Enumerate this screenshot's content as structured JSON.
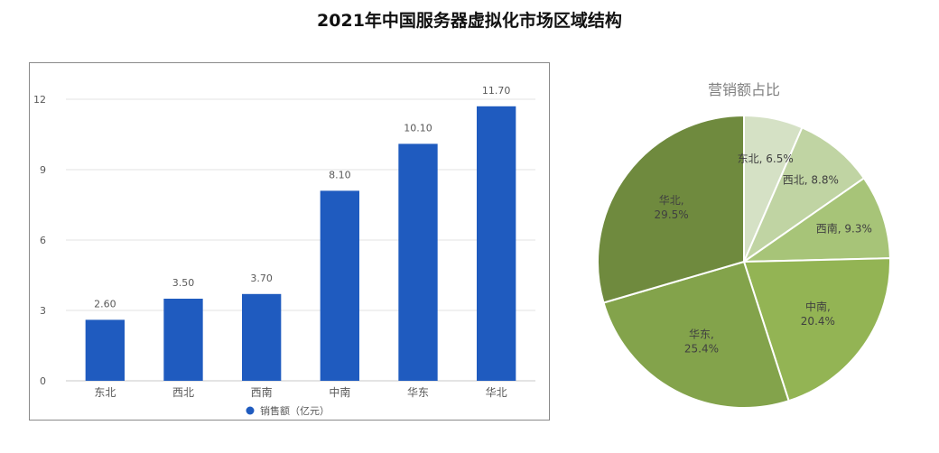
{
  "page_title": "2021年中国服务器虚拟化市场区域结构",
  "chart_data": [
    {
      "type": "bar",
      "categories": [
        "东北",
        "西北",
        "西南",
        "中南",
        "华东",
        "华北"
      ],
      "series": [
        {
          "name": "销售额（亿元）",
          "values": [
            2.6,
            3.5,
            3.7,
            8.1,
            10.1,
            11.7
          ]
        }
      ],
      "data_labels": [
        "2.60",
        "3.50",
        "3.70",
        "8.10",
        "10.10",
        "11.70"
      ],
      "y_ticks": [
        "0",
        "3",
        "6",
        "9",
        "12"
      ],
      "ylim": [
        0,
        12
      ],
      "grid": true,
      "legend_position": "bottom",
      "colors": {
        "bar": "#1f5bbf",
        "grid": "#e3e3e3",
        "axis": "#c9c9c9",
        "text": "#595959"
      }
    },
    {
      "type": "pie",
      "title": "营销额占比",
      "slices": [
        {
          "label": "东北",
          "value": 6.5,
          "text": "东北, 6.5%",
          "color": "#d5e1c5"
        },
        {
          "label": "西北",
          "value": 8.8,
          "text": "西北, 8.8%",
          "color": "#c0d4a3"
        },
        {
          "label": "西南",
          "value": 9.3,
          "text": "西南, 9.3%",
          "color": "#a7c478"
        },
        {
          "label": "中南",
          "value": 20.4,
          "text": "中南, 20.4%",
          "color": "#93b454"
        },
        {
          "label": "华东",
          "value": 25.4,
          "text": "华东, 25.4%",
          "color": "#83a34b"
        },
        {
          "label": "华北",
          "value": 29.5,
          "text": "华北, 29.5%",
          "color": "#6f8a3e"
        }
      ],
      "label_lines": {
        "东北": [
          "东北, 6.5%"
        ],
        "西北": [
          "西北, 8.8%"
        ],
        "西南": [
          "西南, 9.3%"
        ],
        "中南": [
          "中南,",
          "20.4%"
        ],
        "华东": [
          "华东,",
          "25.4%"
        ],
        "华北": [
          "华北,",
          "29.5%"
        ]
      },
      "label_position": "inside",
      "colors": {
        "label": "#404040",
        "title": "#7f7f7f",
        "edge": "#ffffff"
      }
    }
  ]
}
